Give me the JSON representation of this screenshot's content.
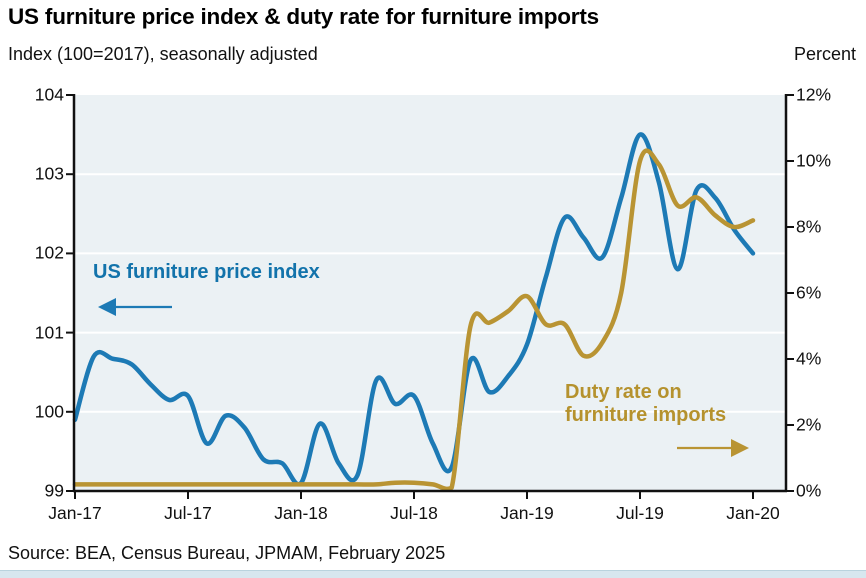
{
  "header": {
    "title": "US furniture price index & duty rate for furniture imports",
    "subtitle_left": "Index (100=2017), seasonally adjusted",
    "subtitle_right": "Percent"
  },
  "source": "Source: BEA, Census Bureau, JPMAM, February 2025",
  "colors": {
    "price_index_line": "#1d7ab5",
    "price_index_label": "#1273ab",
    "duty_rate_line": "#b99433",
    "duty_rate_label": "#b5922e",
    "plot_background": "#ebf1f4",
    "gridline": "#ffffff",
    "axis": "#111111",
    "footer_strip": "#d7e7ef"
  },
  "annotations": {
    "price_index": {
      "text": "US furniture price index",
      "arrow_direction": "left"
    },
    "duty_rate": {
      "line1": "Duty rate on",
      "line2": "furniture imports",
      "arrow_direction": "right"
    }
  },
  "chart_data": {
    "type": "line",
    "title": "US furniture price index & duty rate for furniture imports",
    "months": [
      "Jan-17",
      "Feb-17",
      "Mar-17",
      "Apr-17",
      "May-17",
      "Jun-17",
      "Jul-17",
      "Aug-17",
      "Sep-17",
      "Oct-17",
      "Nov-17",
      "Dec-17",
      "Jan-18",
      "Feb-18",
      "Mar-18",
      "Apr-18",
      "May-18",
      "Jun-18",
      "Jul-18",
      "Aug-18",
      "Sep-18",
      "Oct-18",
      "Nov-18",
      "Dec-18",
      "Jan-19",
      "Feb-19",
      "Mar-19",
      "Apr-19",
      "May-19",
      "Jun-19",
      "Jul-19",
      "Aug-19",
      "Sep-19",
      "Oct-19",
      "Nov-19",
      "Dec-19",
      "Jan-20"
    ],
    "series": [
      {
        "name": "US furniture price index",
        "axis": "left",
        "unit": "index (100=2017)",
        "values": [
          99.9,
          100.7,
          100.67,
          100.6,
          100.35,
          100.15,
          100.2,
          99.6,
          99.95,
          99.8,
          99.4,
          99.35,
          99.1,
          99.85,
          99.35,
          99.2,
          100.4,
          100.1,
          100.2,
          99.6,
          99.3,
          100.65,
          100.25,
          100.45,
          100.85,
          101.7,
          102.45,
          102.2,
          101.95,
          102.7,
          103.5,
          102.9,
          101.8,
          102.8,
          102.7,
          102.3,
          102.0
        ]
      },
      {
        "name": "Duty rate on furniture imports",
        "axis": "right",
        "unit": "percent",
        "values": [
          0.2,
          0.2,
          0.2,
          0.2,
          0.2,
          0.2,
          0.2,
          0.2,
          0.2,
          0.2,
          0.2,
          0.2,
          0.2,
          0.2,
          0.2,
          0.2,
          0.2,
          0.25,
          0.25,
          0.2,
          0.1,
          5.0,
          5.1,
          5.45,
          5.9,
          5.05,
          5.05,
          4.1,
          4.5,
          6.0,
          10.0,
          9.9,
          8.65,
          8.9,
          8.35,
          8.0,
          8.2
        ]
      }
    ],
    "left_axis": {
      "ticks": [
        "104",
        "103",
        "102",
        "101",
        "100",
        "99"
      ],
      "range": [
        99,
        104
      ]
    },
    "right_axis": {
      "ticks": [
        "12%",
        "10%",
        "8%",
        "6%",
        "4%",
        "2%",
        "0%"
      ],
      "range": [
        0,
        12
      ]
    },
    "x_axis": {
      "tick_labels": [
        "Jan-17",
        "Jul-17",
        "Jan-18",
        "Jul-18",
        "Jan-19",
        "Jul-19",
        "Jan-20"
      ],
      "tick_every_months": 6
    },
    "grid": "horizontal white gridlines at integer index values",
    "legend_position": "in-plot annotated labels with arrows"
  }
}
